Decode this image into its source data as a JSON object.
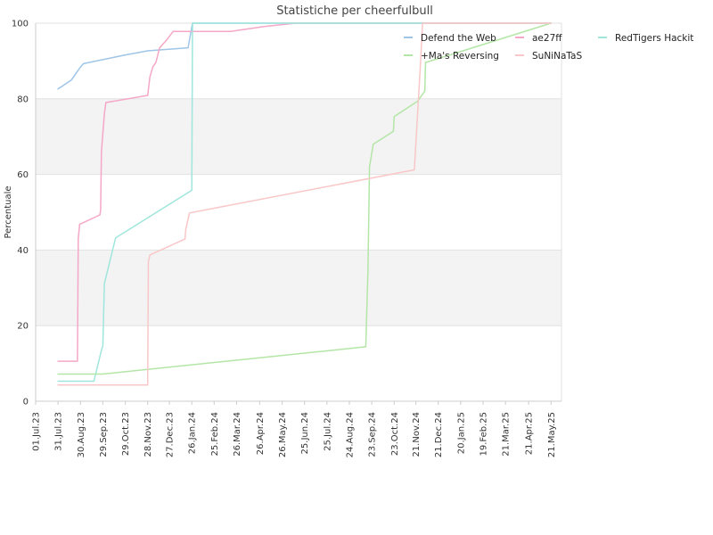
{
  "chart_data": {
    "type": "line",
    "title": "Statistiche per cheerfulbull",
    "xlabel": "",
    "ylabel": "Percentuale",
    "ylim": [
      0,
      100
    ],
    "yticks": [
      0,
      20,
      40,
      60,
      80,
      100
    ],
    "xlim": [
      "2023-07-01",
      "2025-06-04"
    ],
    "xticks": [
      {
        "date": "2023-07-01",
        "label": "01.Jul.23"
      },
      {
        "date": "2023-07-31",
        "label": "31.Jul.23"
      },
      {
        "date": "2023-08-30",
        "label": "30.Aug.23"
      },
      {
        "date": "2023-09-29",
        "label": "29.Sep.23"
      },
      {
        "date": "2023-10-29",
        "label": "29.Oct.23"
      },
      {
        "date": "2023-11-28",
        "label": "28.Nov.23"
      },
      {
        "date": "2023-12-27",
        "label": "27.Dec.23"
      },
      {
        "date": "2024-01-26",
        "label": "26.Jan.24"
      },
      {
        "date": "2024-02-25",
        "label": "25.Feb.24"
      },
      {
        "date": "2024-03-26",
        "label": "26.Mar.24"
      },
      {
        "date": "2024-04-26",
        "label": "26.Apr.24"
      },
      {
        "date": "2024-05-26",
        "label": "26.May.24"
      },
      {
        "date": "2024-06-25",
        "label": "25.Jun.24"
      },
      {
        "date": "2024-07-25",
        "label": "25.Jul.24"
      },
      {
        "date": "2024-08-24",
        "label": "24.Aug.24"
      },
      {
        "date": "2024-09-23",
        "label": "23.Sep.24"
      },
      {
        "date": "2024-10-23",
        "label": "23.Oct.24"
      },
      {
        "date": "2024-11-21",
        "label": "21.Nov.24"
      },
      {
        "date": "2024-12-21",
        "label": "21.Dec.24"
      },
      {
        "date": "2025-01-20",
        "label": "20.Jan.25"
      },
      {
        "date": "2025-02-19",
        "label": "19.Feb.25"
      },
      {
        "date": "2025-03-21",
        "label": "21.Mar.25"
      },
      {
        "date": "2025-04-21",
        "label": "21.Apr.25"
      },
      {
        "date": "2025-05-21",
        "label": "21.May.25"
      }
    ],
    "grid": "horizontal",
    "alternating_bands": true,
    "legend_position": "top-right",
    "series": [
      {
        "name": "Defend the Web",
        "color": "#9fc5e8",
        "points": [
          [
            "2023-07-31",
            82.6
          ],
          [
            "2023-08-12",
            84.2
          ],
          [
            "2023-08-18",
            85.0
          ],
          [
            "2023-08-30",
            88.4
          ],
          [
            "2023-09-03",
            89.3
          ],
          [
            "2023-10-29",
            91.6
          ],
          [
            "2023-11-28",
            92.7
          ],
          [
            "2024-01-21",
            93.5
          ],
          [
            "2024-01-27",
            100
          ],
          [
            "2025-05-21",
            100
          ]
        ]
      },
      {
        "name": "ae27ff",
        "color": "#f4a7c6",
        "points": [
          [
            "2023-07-31",
            10.6
          ],
          [
            "2023-08-26",
            10.6
          ],
          [
            "2023-08-27",
            43.0
          ],
          [
            "2023-08-29",
            46.8
          ],
          [
            "2023-09-25",
            49.3
          ],
          [
            "2023-09-26",
            50.5
          ],
          [
            "2023-09-27",
            66.0
          ],
          [
            "2023-10-01",
            76.0
          ],
          [
            "2023-10-03",
            79.0
          ],
          [
            "2023-11-28",
            80.9
          ],
          [
            "2023-12-01",
            85.8
          ],
          [
            "2023-12-05",
            88.5
          ],
          [
            "2023-12-09",
            89.6
          ],
          [
            "2023-12-14",
            93.5
          ],
          [
            "2023-12-24",
            95.7
          ],
          [
            "2024-01-01",
            97.8
          ],
          [
            "2024-03-18",
            97.8
          ],
          [
            "2024-05-02",
            99.1
          ],
          [
            "2024-06-13",
            100
          ],
          [
            "2025-05-21",
            100
          ]
        ]
      },
      {
        "name": "RedTigers Hackit",
        "color": "#9fe6dc",
        "points": [
          [
            "2023-07-31",
            5.3
          ],
          [
            "2023-09-17",
            5.3
          ],
          [
            "2023-09-27",
            13.5
          ],
          [
            "2023-09-29",
            14.6
          ],
          [
            "2023-10-01",
            31.1
          ],
          [
            "2023-10-16",
            43.2
          ],
          [
            "2024-01-26",
            55.8
          ],
          [
            "2024-01-27",
            100
          ],
          [
            "2025-05-21",
            100
          ]
        ]
      },
      {
        "name": "+Ma's Reversing",
        "color": "#b3e6a6",
        "points": [
          [
            "2023-07-31",
            7.2
          ],
          [
            "2023-09-29",
            7.2
          ],
          [
            "2024-09-15",
            14.4
          ],
          [
            "2024-09-18",
            35.0
          ],
          [
            "2024-09-20",
            62.0
          ],
          [
            "2024-09-25",
            68.0
          ],
          [
            "2024-10-22",
            71.4
          ],
          [
            "2024-10-23",
            75.3
          ],
          [
            "2024-11-23",
            79.3
          ],
          [
            "2024-12-03",
            82.0
          ],
          [
            "2024-12-04",
            89.6
          ],
          [
            "2025-05-21",
            100
          ]
        ]
      },
      {
        "name": "SuNiNaTaS",
        "color": "#f9c7c7",
        "points": [
          [
            "2023-07-31",
            4.3
          ],
          [
            "2023-11-28",
            4.3
          ],
          [
            "2023-11-29",
            37.0
          ],
          [
            "2023-12-01",
            38.7
          ],
          [
            "2024-01-17",
            42.9
          ],
          [
            "2024-01-18",
            45.5
          ],
          [
            "2024-01-23",
            49.8
          ],
          [
            "2024-11-19",
            61.2
          ],
          [
            "2024-11-27",
            88.5
          ],
          [
            "2024-11-30",
            100
          ],
          [
            "2025-05-21",
            100
          ]
        ]
      }
    ]
  }
}
